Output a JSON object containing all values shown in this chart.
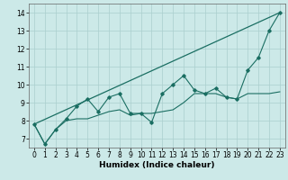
{
  "xlabel": "Humidex (Indice chaleur)",
  "bg_color": "#cce9e8",
  "grid_color": "#aacfce",
  "line_color": "#1a6e62",
  "xlim": [
    -0.5,
    23.5
  ],
  "ylim": [
    6.5,
    14.5
  ],
  "xticks": [
    0,
    1,
    2,
    3,
    4,
    5,
    6,
    7,
    8,
    9,
    10,
    11,
    12,
    13,
    14,
    15,
    16,
    17,
    18,
    19,
    20,
    21,
    22,
    23
  ],
  "yticks": [
    7,
    8,
    9,
    10,
    11,
    12,
    13,
    14
  ],
  "straight_line_x": [
    0,
    23
  ],
  "straight_line_y": [
    7.8,
    14.0
  ],
  "main_line_x": [
    0,
    1,
    2,
    3,
    4,
    5,
    6,
    7,
    8,
    9,
    10,
    11,
    12,
    13,
    14,
    15,
    16,
    17,
    18,
    19,
    20,
    21,
    22,
    23
  ],
  "main_line_y": [
    7.8,
    6.7,
    7.5,
    8.1,
    8.8,
    9.2,
    8.5,
    9.3,
    9.5,
    8.4,
    8.4,
    7.9,
    9.5,
    10.0,
    10.5,
    9.7,
    9.5,
    9.8,
    9.3,
    9.2,
    10.8,
    11.5,
    13.0,
    14.0
  ],
  "env_line_x": [
    0,
    1,
    2,
    3,
    4,
    5,
    6,
    7,
    8,
    9,
    10,
    11,
    12,
    13,
    14,
    15,
    16,
    17,
    18,
    19,
    20,
    21,
    22,
    23
  ],
  "env_line_y": [
    7.8,
    6.7,
    7.5,
    8.0,
    8.1,
    8.1,
    8.3,
    8.5,
    8.6,
    8.3,
    8.4,
    8.4,
    8.5,
    8.6,
    9.0,
    9.5,
    9.5,
    9.5,
    9.3,
    9.2,
    9.5,
    9.5,
    9.5,
    9.6
  ],
  "tick_fontsize": 5.5,
  "xlabel_fontsize": 6.5
}
